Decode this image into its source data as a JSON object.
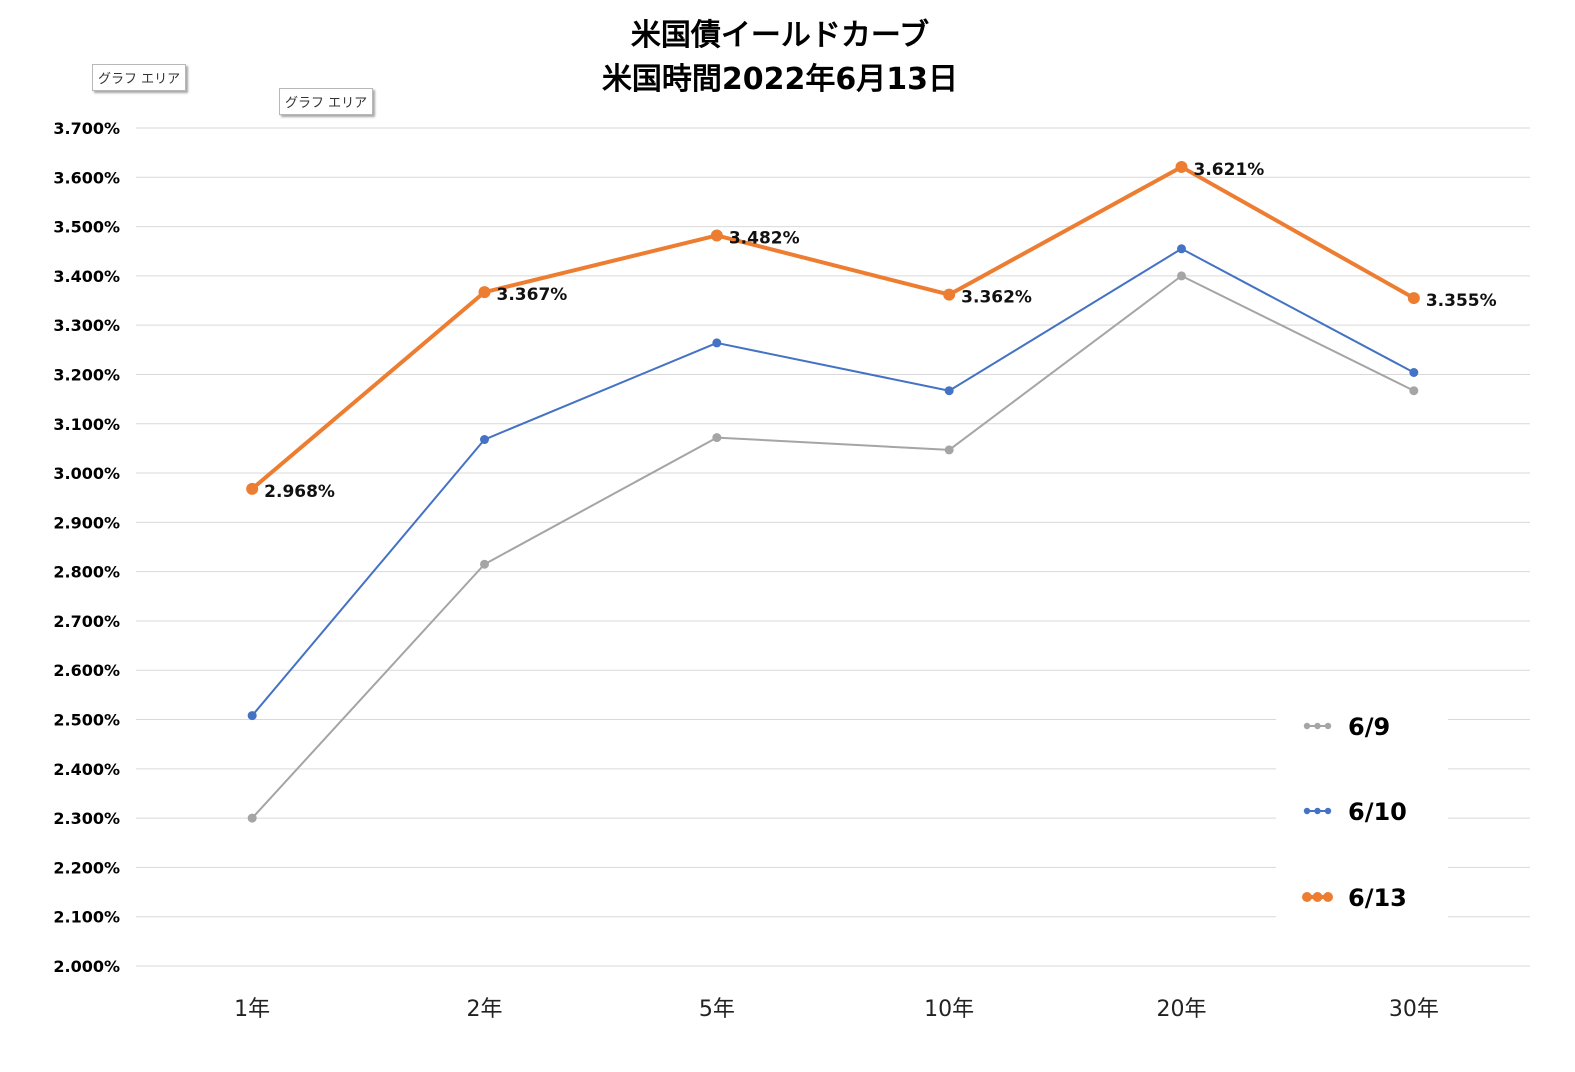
{
  "tooltips": [
    "グラフ エリア",
    "グラフ エリア"
  ],
  "chart_data": {
    "type": "line",
    "title": "米国債イールドカーブ",
    "subtitle": "米国時間2022年6月13日",
    "categories": [
      "1年",
      "2年",
      "5年",
      "10年",
      "20年",
      "30年"
    ],
    "ylim": [
      2.0,
      3.7
    ],
    "ytick_step": 0.1,
    "ytick_labels": [
      "3.700%",
      "3.600%",
      "3.500%",
      "3.400%",
      "3.300%",
      "3.200%",
      "3.100%",
      "3.000%",
      "2.900%",
      "2.800%",
      "2.700%",
      "2.600%",
      "2.500%",
      "2.400%",
      "2.300%",
      "2.200%",
      "2.100%",
      "2.000%"
    ],
    "grid": true,
    "legend_position": "bottom-right",
    "series": [
      {
        "name": "6/9",
        "color": "#a5a5a5",
        "values": [
          2.3,
          2.815,
          3.072,
          3.047,
          3.4,
          3.167
        ]
      },
      {
        "name": "6/10",
        "color": "#4472c4",
        "values": [
          2.508,
          3.068,
          3.264,
          3.167,
          3.455,
          3.204
        ]
      },
      {
        "name": "6/13",
        "color": "#ed7d31",
        "values": [
          2.968,
          3.367,
          3.482,
          3.362,
          3.621,
          3.355
        ],
        "data_labels": [
          "2.968%",
          "3.367%",
          "3.482%",
          "3.362%",
          "3.621%",
          "3.355%"
        ]
      }
    ]
  }
}
